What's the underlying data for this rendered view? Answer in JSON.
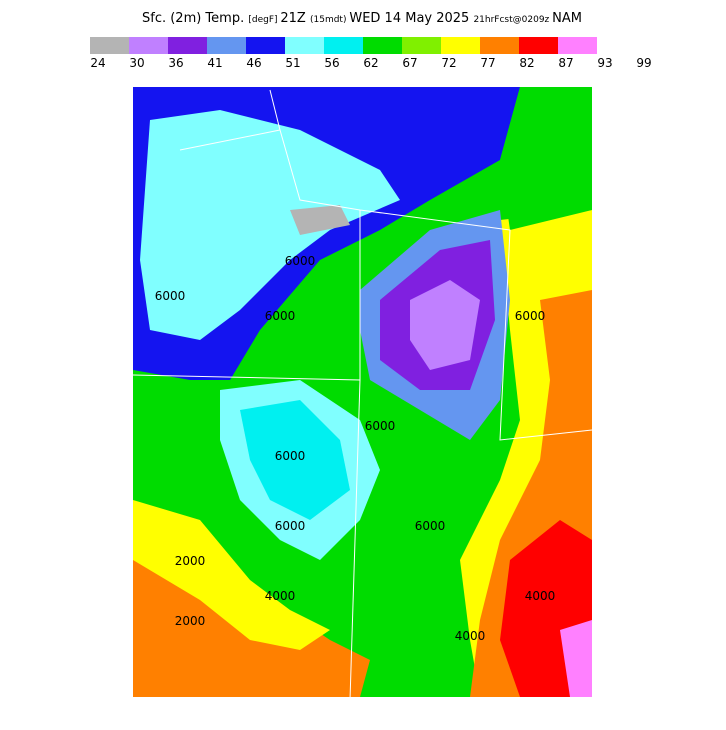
{
  "header": {
    "title_parts": [
      "Sfc. (2m) Temp.",
      "[degF]",
      "21Z",
      "(15mdt)",
      "WED 14 May 2025",
      "21hrFcst@0209z",
      "NAM"
    ]
  },
  "colorbar": {
    "colors": [
      "#b4b4b4",
      "#c080ff",
      "#8020e0",
      "#6496f0",
      "#1414f0",
      "#80ffff",
      "#00f0f0",
      "#00dc00",
      "#80f000",
      "#ffff00",
      "#ff8000",
      "#ff0000",
      "#ff80ff"
    ],
    "labels": [
      "24",
      "30",
      "36",
      "41",
      "46",
      "51",
      "56",
      "62",
      "67",
      "72",
      "77",
      "82",
      "87",
      "93",
      "99"
    ]
  },
  "contour_labels": [
    "6000",
    "6000",
    "6000",
    "6000",
    "6000",
    "6000",
    "6000",
    "6000",
    "2000",
    "2000",
    "4000",
    "4000",
    "4000"
  ]
}
